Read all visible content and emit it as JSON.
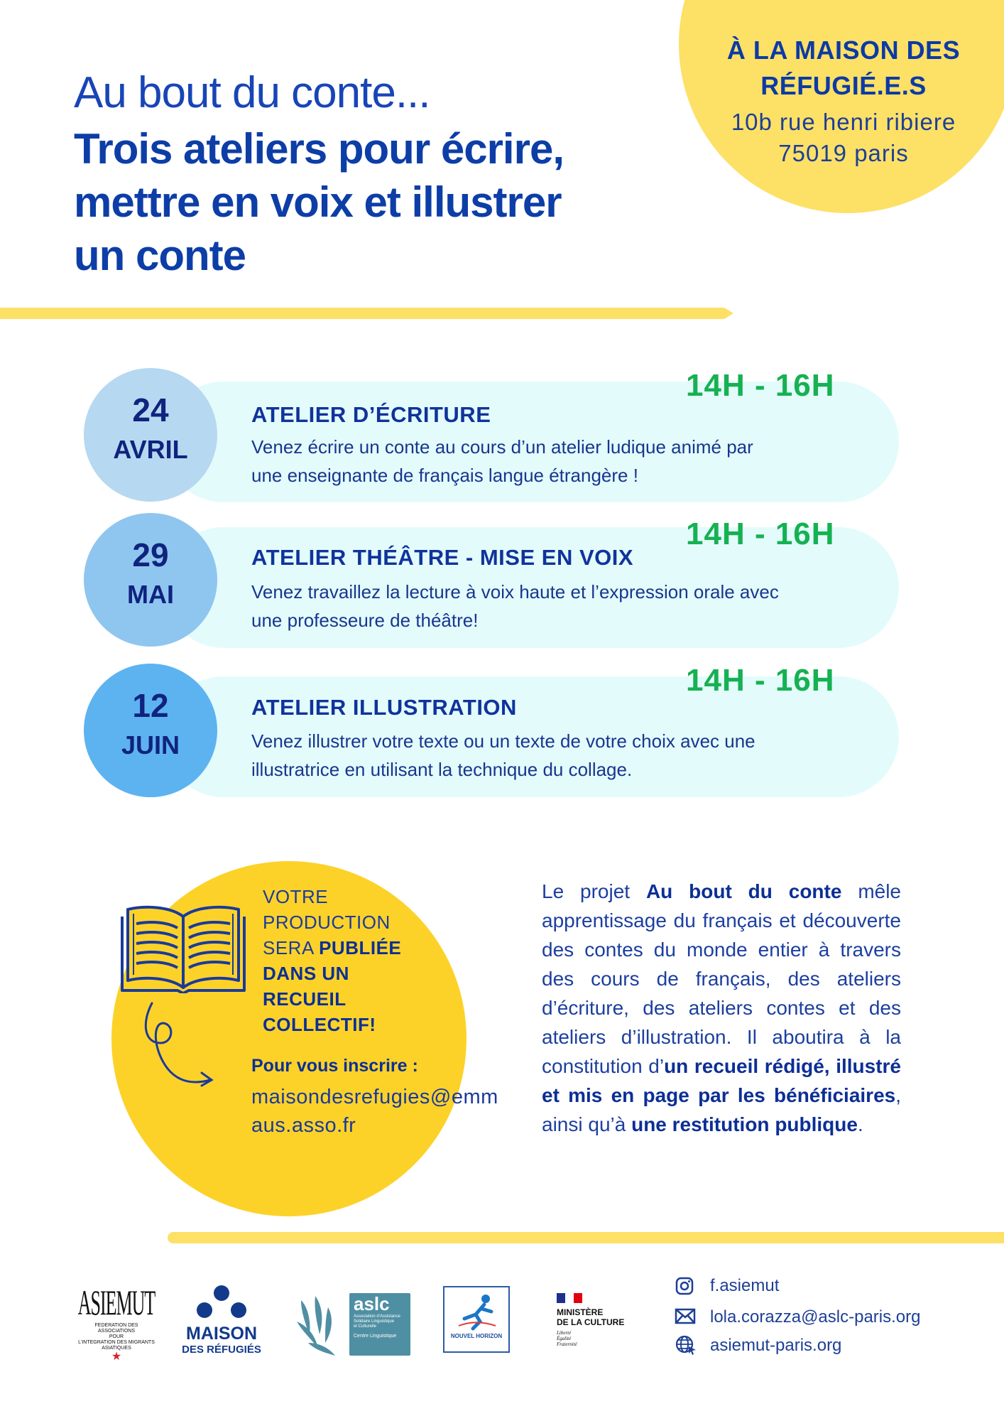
{
  "venue": {
    "title_line1": "À LA MAISON DES",
    "title_line2": "RÉFUGIÉ.E.S",
    "address_line1": "10b rue henri ribiere",
    "address_line2": "75019 paris"
  },
  "heading": {
    "light": "Au bout du conte...",
    "bold_line1": "Trois ateliers pour écrire,",
    "bold_line2": "mettre en voix et illustrer",
    "bold_line3": "un conte"
  },
  "workshops": [
    {
      "day": "24",
      "month": "AVRIL",
      "time": "14H - 16H",
      "title": "ATELIER D’ÉCRITURE",
      "desc_line1": "Venez écrire un conte au cours d’un atelier ludique animé par",
      "desc_line2": "une enseignante de français langue étrangère !",
      "badge_color": "#b6d8f1"
    },
    {
      "day": "29",
      "month": "MAI",
      "time": "14H - 16H",
      "title": "ATELIER THÉÂTRE - MISE EN VOIX",
      "desc_line1": "Venez travaillez la lecture à voix haute et l’expression orale avec",
      "desc_line2": "une professeure de théâtre!",
      "badge_color": "#8fc6f0"
    },
    {
      "day": "12",
      "month": "JUIN",
      "time": "14H - 16H",
      "title": "ATELIER ILLUSTRATION",
      "desc_line1": "Venez illustrer votre texte ou un texte de votre choix avec une",
      "desc_line2": "illustratrice en utilisant la technique du collage.",
      "badge_color": "#5db3f0"
    }
  ],
  "production": {
    "line1": "VOTRE",
    "line2": "PRODUCTION",
    "line3_normal": "SERA ",
    "line3_bold": "PUBLIÉE",
    "line4": "DANS UN",
    "line5": "RECUEIL",
    "line6": "COLLECTIF!"
  },
  "signup": {
    "label": "Pour vous inscrire :",
    "email": "maisondesrefugies@emmaus.asso.fr"
  },
  "project": {
    "p1": "Le projet ",
    "b1": "Au bout du conte",
    "p2": " mêle apprentissage du français et découverte des contes du monde entier à travers des cours de français, des ateliers d’écriture, des ateliers contes et des ateliers d’illustration. Il aboutira à la constitution d’",
    "b2": "un recueil rédigé, illustré et mis en page par les bénéficiaires",
    "p3": ", ainsi qu’à ",
    "b3": "une restitution publique",
    "p4": "."
  },
  "logos": {
    "asiemut_name": "ASIEMUT",
    "asiemut_caption1": "FEDERATION DES ASSOCIATIONS",
    "asiemut_caption2": "POUR",
    "asiemut_caption3": "L'INTEGRATION DES MIGRANTS",
    "asiemut_caption4": "ASIATIQUES",
    "maison_line1": "MAISON",
    "maison_line2": "DES RÉFUGIÉS",
    "aslc_name": "aslc",
    "aslc_caption1": "Association d'Assistance",
    "aslc_caption2": "Solidaire Linguistique",
    "aslc_caption3": "et Culturelle",
    "aslc_caption4": "Centre Linguistique",
    "nouvel_horizon": "NOUVEL HORIZON",
    "ministere_line1": "MINISTÈRE",
    "ministere_line2": "DE LA CULTURE",
    "ministere_motto1": "Liberté",
    "ministere_motto2": "Égalité",
    "ministere_motto3": "Fraternité"
  },
  "contacts": {
    "instagram": "f.asiemut",
    "email": "lola.corazza@aslc-paris.org",
    "website": "asiemut-paris.org"
  },
  "colors": {
    "navy": "#0c3aa5",
    "yellow": "#fde066",
    "deep_yellow": "#fcd229",
    "green_time": "#16b152",
    "pill_bg": "#e3fbfb"
  }
}
